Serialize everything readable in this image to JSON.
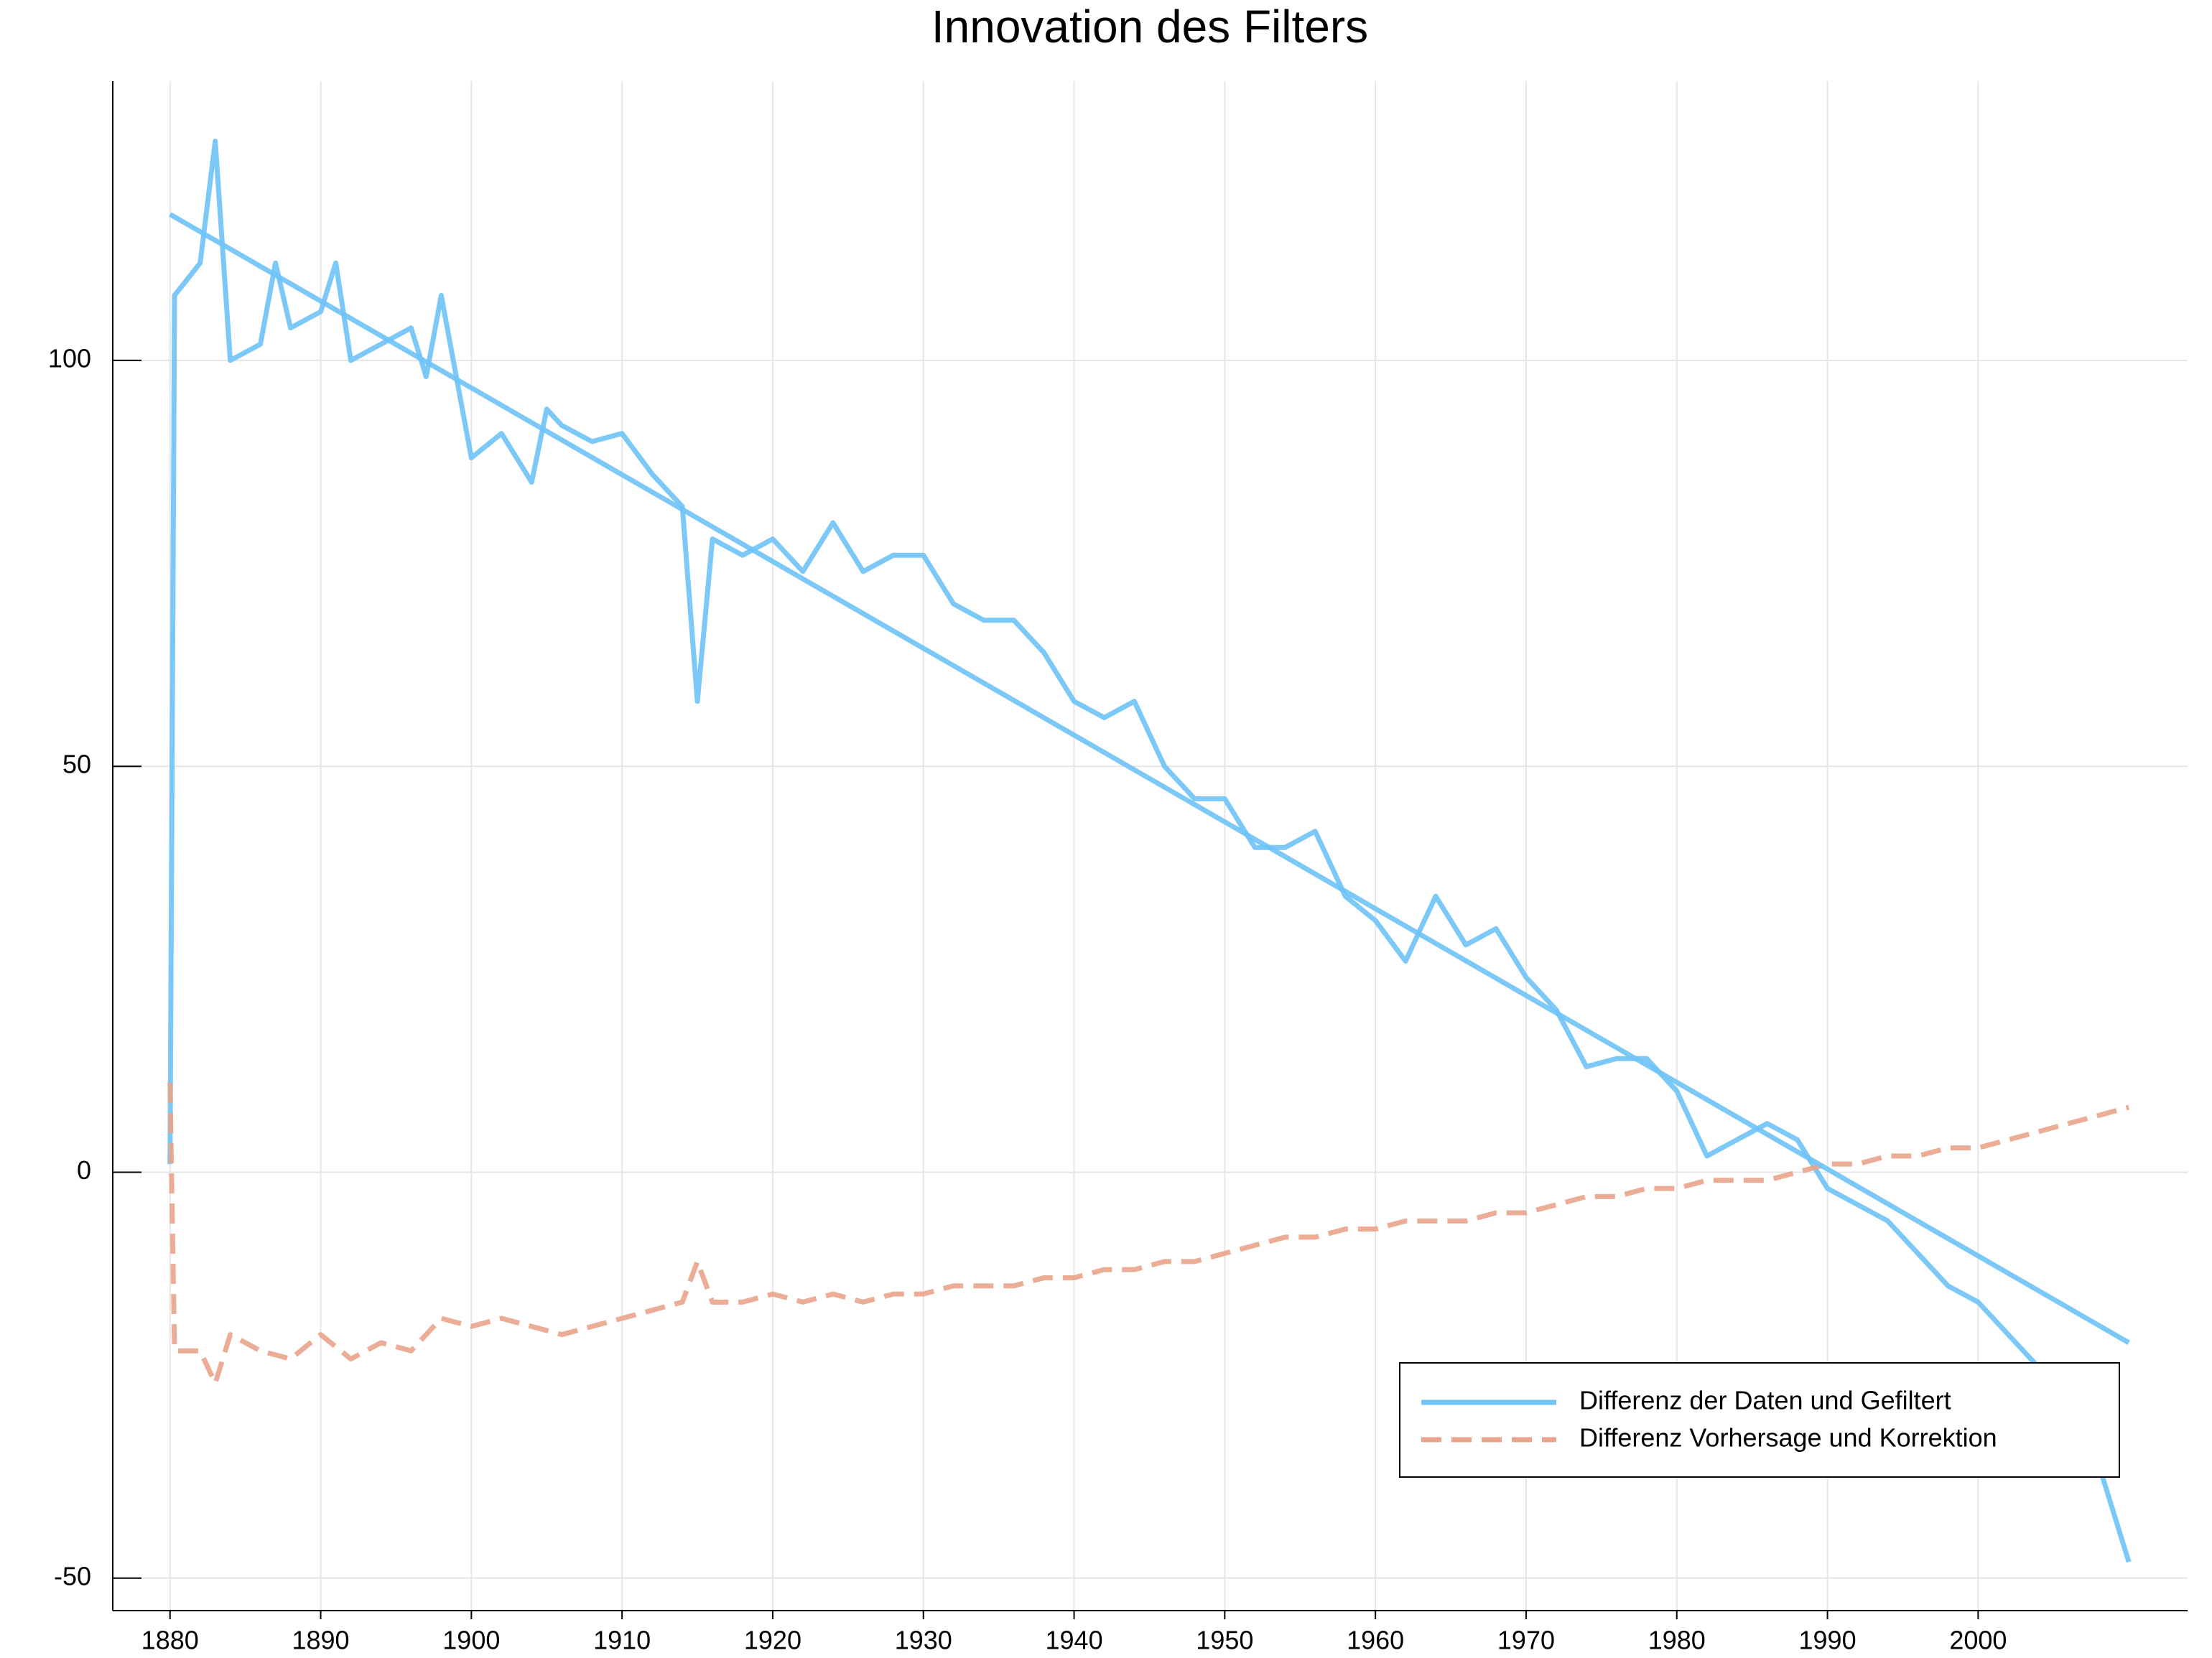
{
  "chart_data": {
    "type": "line",
    "title": "Innovation des Filters",
    "xlim": [
      1876.2,
      2013.9
    ],
    "ylim": [
      -54,
      134.4
    ],
    "xticks": [
      1880,
      1890,
      1900,
      1910,
      1920,
      1930,
      1940,
      1950,
      1960,
      1970,
      1980,
      1990,
      2000
    ],
    "yticks": [
      -50,
      0,
      50,
      100
    ],
    "grid": true,
    "legend": "lower right",
    "series": [
      {
        "name": "Differenz der Daten und Gefiltert",
        "color": "#6ec3f7",
        "dash": false,
        "x": [
          1880,
          1880.3,
          1882,
          1883,
          1884,
          1886,
          1887,
          1888,
          1890,
          1891,
          1892,
          1894,
          1896,
          1897,
          1898,
          1900,
          1902,
          1904,
          1905,
          1906,
          1908,
          1910,
          1912,
          1914,
          1915,
          1916,
          1918,
          1920,
          1922,
          1924,
          1926,
          1928,
          1930,
          1932,
          1934,
          1936,
          1938,
          1940,
          1942,
          1944,
          1946,
          1948,
          1950,
          1952,
          1954,
          1956,
          1958,
          1960,
          1962,
          1964,
          1966,
          1968,
          1970,
          1972,
          1974,
          1976,
          1978,
          1980,
          1982,
          1984,
          1986,
          1988,
          1990,
          1992,
          1994,
          1996,
          1998,
          2000,
          2002,
          2004,
          2006,
          2008,
          2010
        ],
        "values": [
          1,
          108,
          112,
          127,
          100,
          102,
          112,
          104,
          106,
          112,
          100,
          102,
          104,
          98,
          108,
          88,
          91,
          85,
          94,
          92,
          90,
          91,
          86,
          82,
          58,
          78,
          76,
          78,
          74,
          80,
          74,
          76,
          76,
          70,
          68,
          68,
          64,
          58,
          56,
          58,
          50,
          46,
          46,
          40,
          40,
          42,
          34,
          31,
          26,
          34,
          28,
          30,
          24,
          20,
          13,
          14,
          14,
          10,
          2,
          4,
          6,
          4,
          -2,
          -4,
          -6,
          -10,
          -14,
          -16,
          -20,
          -24,
          -26,
          -36,
          -48
        ]
      },
      {
        "name": "Differenz Vorhersage und Korrektion",
        "color": "#e9a48b",
        "dash": true,
        "x": [
          1880,
          1880.3,
          1882,
          1883,
          1884,
          1886,
          1888,
          1890,
          1892,
          1894,
          1896,
          1898,
          1900,
          1902,
          1904,
          1906,
          1908,
          1910,
          1912,
          1914,
          1915,
          1916,
          1918,
          1920,
          1922,
          1924,
          1926,
          1928,
          1930,
          1932,
          1934,
          1936,
          1938,
          1940,
          1942,
          1944,
          1946,
          1948,
          1950,
          1952,
          1954,
          1956,
          1958,
          1960,
          1962,
          1964,
          1966,
          1968,
          1970,
          1972,
          1974,
          1976,
          1978,
          1980,
          1982,
          1984,
          1986,
          1988,
          1990,
          1992,
          1994,
          1996,
          1998,
          2000,
          2002,
          2004,
          2006,
          2008,
          2010
        ],
        "values": [
          11,
          -22,
          -22,
          -26,
          -20,
          -22,
          -23,
          -20,
          -23,
          -21,
          -22,
          -18,
          -19,
          -18,
          -19,
          -20,
          -19,
          -18,
          -17,
          -16,
          -11,
          -16,
          -16,
          -15,
          -16,
          -15,
          -16,
          -15,
          -15,
          -14,
          -14,
          -14,
          -13,
          -13,
          -12,
          -12,
          -11,
          -11,
          -10,
          -9,
          -8,
          -8,
          -7,
          -7,
          -6,
          -6,
          -6,
          -5,
          -5,
          -4,
          -3,
          -3,
          -2,
          -2,
          -1,
          -1,
          -1,
          0,
          1,
          1,
          2,
          2,
          3,
          3,
          4,
          5,
          6,
          7,
          8
        ]
      },
      {
        "color": "#6ec3f7",
        "dash": false,
        "x": [
          1880,
          2010
        ],
        "values": [
          118,
          -21
        ]
      }
    ]
  }
}
